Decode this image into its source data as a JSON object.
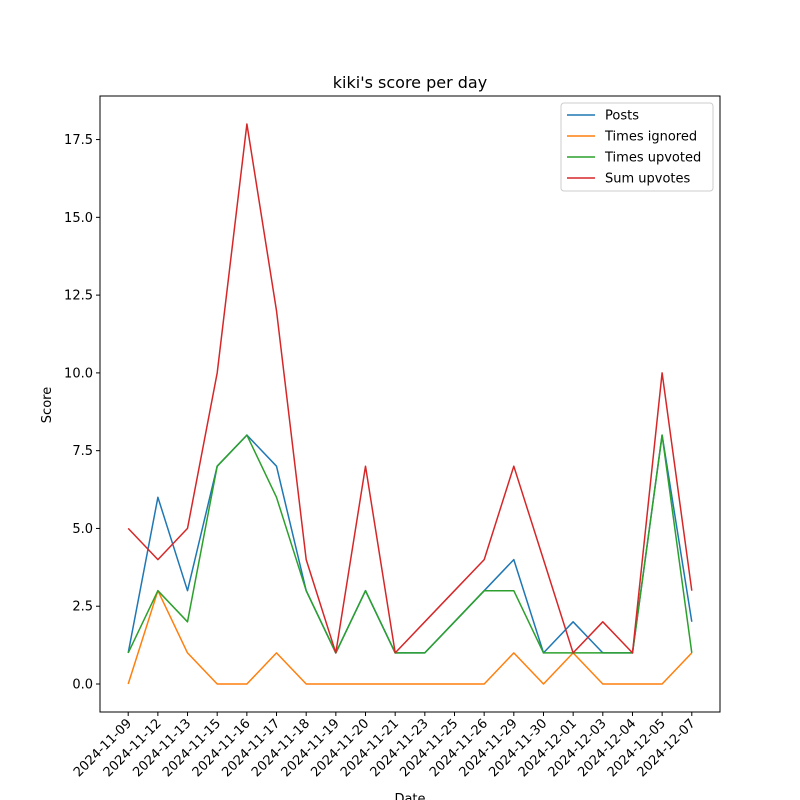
{
  "chart_data": {
    "type": "line",
    "title": "kiki's score per day",
    "xlabel": "Date",
    "ylabel": "Score",
    "x": [
      "2024-11-09",
      "2024-11-12",
      "2024-11-13",
      "2024-11-15",
      "2024-11-16",
      "2024-11-17",
      "2024-11-18",
      "2024-11-19",
      "2024-11-20",
      "2024-11-21",
      "2024-11-23",
      "2024-11-25",
      "2024-11-26",
      "2024-11-29",
      "2024-11-30",
      "2024-12-01",
      "2024-12-03",
      "2024-12-04",
      "2024-12-05",
      "2024-12-07"
    ],
    "ylim": [
      -0.9,
      18.9
    ],
    "yticks": [
      0.0,
      2.5,
      5.0,
      7.5,
      10.0,
      12.5,
      15.0,
      17.5
    ],
    "ytick_labels": [
      "0.0",
      "2.5",
      "5.0",
      "7.5",
      "10.0",
      "12.5",
      "15.0",
      "17.5"
    ],
    "grid": false,
    "legend_position": "top-right",
    "series": [
      {
        "name": "Posts",
        "color": "#1f77b4",
        "values": [
          1,
          6,
          3,
          7,
          8,
          7,
          3,
          1,
          3,
          1,
          1,
          2,
          3,
          4,
          1,
          2,
          1,
          1,
          8,
          2
        ]
      },
      {
        "name": "Times ignored",
        "color": "#ff7f0e",
        "values": [
          0,
          3,
          1,
          0,
          0,
          1,
          0,
          0,
          0,
          0,
          0,
          0,
          0,
          1,
          0,
          1,
          0,
          0,
          0,
          1
        ]
      },
      {
        "name": "Times upvoted",
        "color": "#2ca02c",
        "values": [
          1,
          3,
          2,
          7,
          8,
          6,
          3,
          1,
          3,
          1,
          1,
          2,
          3,
          3,
          1,
          1,
          1,
          1,
          8,
          1
        ]
      },
      {
        "name": "Sum upvotes",
        "color": "#d62728",
        "values": [
          5,
          4,
          5,
          10,
          18,
          12,
          4,
          1,
          7,
          1,
          2,
          3,
          4,
          7,
          4,
          1,
          2,
          1,
          10,
          3
        ]
      }
    ]
  }
}
